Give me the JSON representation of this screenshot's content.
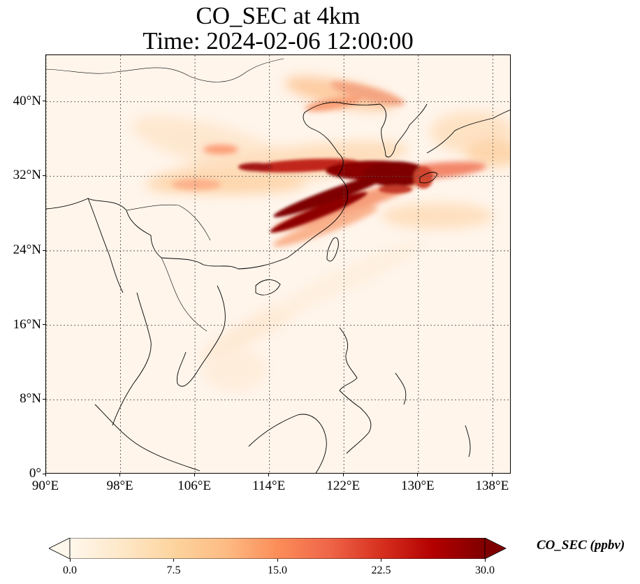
{
  "title": {
    "line1": "CO_SEC at 4km",
    "line2": "Time: 2024-02-06 12:00:00"
  },
  "map": {
    "lat_labels": [
      "40°N",
      "32°N",
      "24°N",
      "16°N",
      "8°N",
      "0°"
    ],
    "lat_values": [
      40,
      32,
      24,
      16,
      8,
      0
    ],
    "lon_labels": [
      "90°E",
      "98°E",
      "106°E",
      "114°E",
      "122°E",
      "130°E",
      "138°E"
    ],
    "lon_values": [
      90,
      98,
      106,
      114,
      122,
      130,
      138
    ],
    "lon_range": [
      90,
      140
    ],
    "lat_range": [
      0,
      45
    ],
    "gridlines": true,
    "background_color": "#fff5eb",
    "coastline_color": "#000000",
    "plume_color_max": "#7f0000"
  },
  "colorbar": {
    "title": "CO_SEC (ppbv)",
    "ticks": [
      "0.0",
      "7.5",
      "15.0",
      "22.5",
      "30.0"
    ],
    "tick_values": [
      0,
      7.5,
      15,
      22.5,
      30
    ],
    "range": [
      0,
      30
    ],
    "colormap": "OrRd",
    "colors": [
      "#fff7ec",
      "#fee8c8",
      "#fdd49e",
      "#fdbb84",
      "#fc8d59",
      "#ef6548",
      "#d7301f",
      "#b30000",
      "#7f0000"
    ],
    "extend": "both"
  }
}
